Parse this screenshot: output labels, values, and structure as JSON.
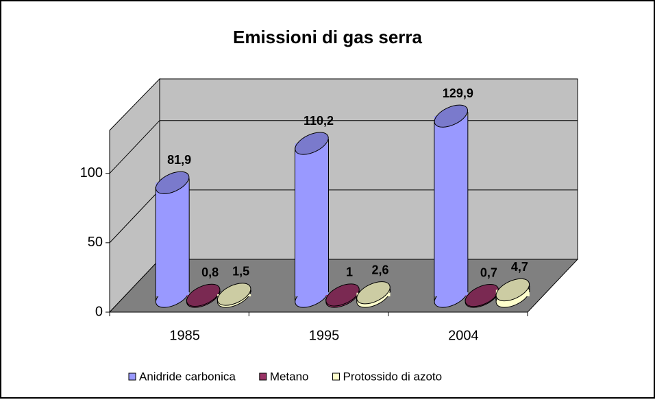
{
  "chart_data": {
    "type": "bar3d",
    "title": "Emissioni di gas serra",
    "categories": [
      "1985",
      "1995",
      "2004"
    ],
    "series": [
      {
        "name": "Anidride carbonica",
        "color": "#9999ff",
        "values": [
          81.9,
          110.2,
          129.9
        ],
        "value_labels": [
          "81,9",
          "110,2",
          "129,9"
        ]
      },
      {
        "name": "Metano",
        "color": "#993366",
        "values": [
          0.8,
          1,
          0.7
        ],
        "value_labels": [
          "0,8",
          "1",
          "0,7"
        ]
      },
      {
        "name": "Protossido di azoto",
        "color": "#ffffcc",
        "values": [
          1.5,
          2.6,
          4.7
        ],
        "value_labels": [
          "1,5",
          "2,6",
          "4,7"
        ]
      }
    ],
    "ylim": [
      0,
      130
    ],
    "yticks": [
      0,
      50,
      100
    ],
    "grid": true,
    "legend": "bottom"
  }
}
